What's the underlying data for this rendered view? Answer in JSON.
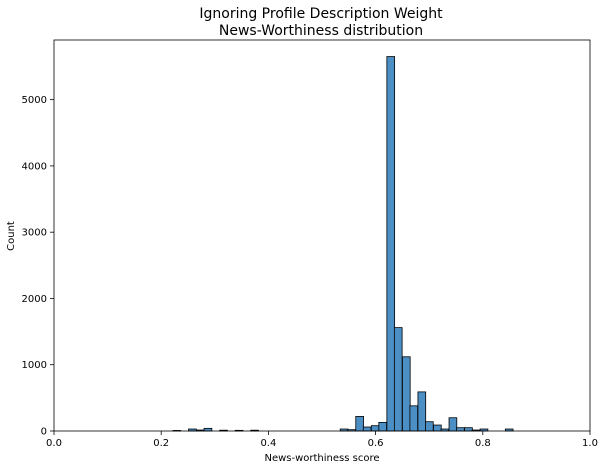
{
  "chart_data": {
    "type": "bar",
    "title_line1": "Ignoring Profile Description Weight",
    "title_line2": "News-Worthiness distribution",
    "xlabel": "News-worthiness score",
    "ylabel": "Count",
    "xlim": [
      0.0,
      1.0
    ],
    "ylim": [
      0,
      5900
    ],
    "x_ticks": [
      "0.0",
      "0.2",
      "0.4",
      "0.6",
      "0.8",
      "1.0"
    ],
    "x_tick_values": [
      0.0,
      0.2,
      0.4,
      0.6,
      0.8,
      1.0
    ],
    "y_ticks": [
      "0",
      "1000",
      "2000",
      "3000",
      "4000",
      "5000"
    ],
    "y_tick_values": [
      0,
      1000,
      2000,
      3000,
      4000,
      5000
    ],
    "bar_color": "#4c8fc4",
    "bin_width": 0.0145,
    "bins": [
      {
        "x": 0.222,
        "count": 8
      },
      {
        "x": 0.251,
        "count": 30
      },
      {
        "x": 0.266,
        "count": 15
      },
      {
        "x": 0.28,
        "count": 40
      },
      {
        "x": 0.309,
        "count": 12
      },
      {
        "x": 0.338,
        "count": 10
      },
      {
        "x": 0.367,
        "count": 12
      },
      {
        "x": 0.534,
        "count": 30
      },
      {
        "x": 0.548,
        "count": 20
      },
      {
        "x": 0.563,
        "count": 220
      },
      {
        "x": 0.577,
        "count": 60
      },
      {
        "x": 0.592,
        "count": 80
      },
      {
        "x": 0.606,
        "count": 130
      },
      {
        "x": 0.621,
        "count": 5650
      },
      {
        "x": 0.635,
        "count": 1560
      },
      {
        "x": 0.65,
        "count": 1120
      },
      {
        "x": 0.664,
        "count": 380
      },
      {
        "x": 0.679,
        "count": 590
      },
      {
        "x": 0.693,
        "count": 140
      },
      {
        "x": 0.708,
        "count": 90
      },
      {
        "x": 0.722,
        "count": 30
      },
      {
        "x": 0.737,
        "count": 200
      },
      {
        "x": 0.751,
        "count": 50
      },
      {
        "x": 0.766,
        "count": 50
      },
      {
        "x": 0.78,
        "count": 15
      },
      {
        "x": 0.795,
        "count": 30
      },
      {
        "x": 0.842,
        "count": 30
      }
    ]
  }
}
